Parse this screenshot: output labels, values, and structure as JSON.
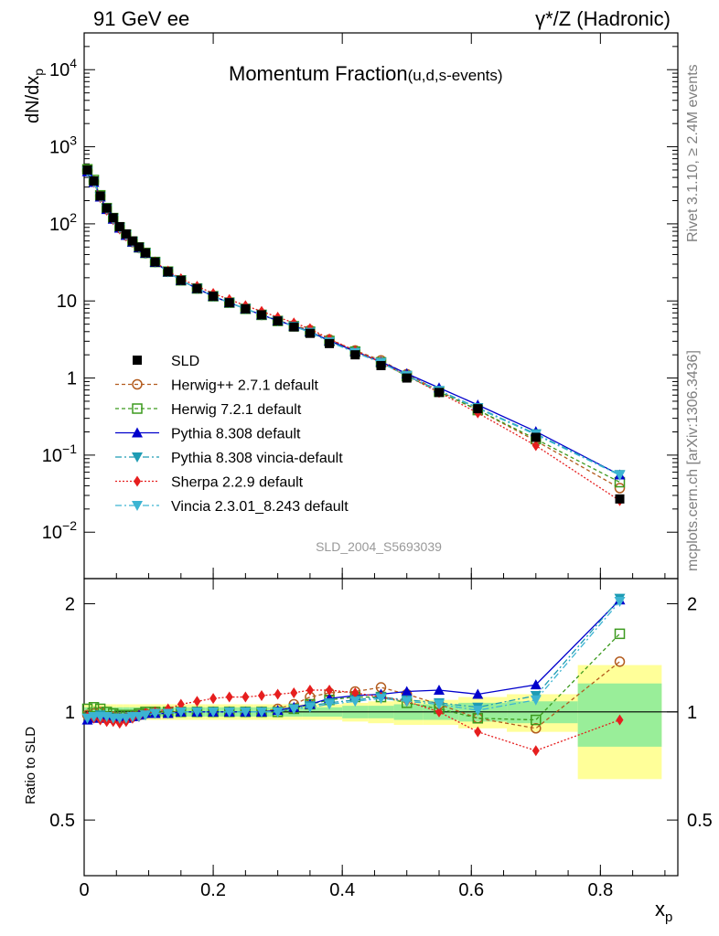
{
  "header": {
    "left_title": "91 GeV ee",
    "right_title": "γ*/Z (Hadronic)",
    "plot_title_main": "Momentum Fraction",
    "plot_title_sub": "(u,d,s-events)",
    "watermark": "SLD_2004_S5693039",
    "side_rivet": "Rivet 3.1.10, ≥ 2.4M events",
    "side_mcplots": "mcplots.cern.ch [arXiv:1306.3436]"
  },
  "axes": {
    "ylabel_top": "dN/dx",
    "ylabel_top_sub": "p",
    "ylabel_bottom": "Ratio to SLD",
    "xlabel": "x",
    "xlabel_sub": "p",
    "top_ticks": [
      {
        "v": 0.01,
        "base": "10",
        "exp": "−2"
      },
      {
        "v": 0.1,
        "base": "10",
        "exp": "−1"
      },
      {
        "v": 1,
        "base": "1",
        "exp": ""
      },
      {
        "v": 10,
        "base": "10",
        "exp": ""
      },
      {
        "v": 100,
        "base": "10",
        "exp": "2"
      },
      {
        "v": 1000,
        "base": "10",
        "exp": "3"
      },
      {
        "v": 10000,
        "base": "10",
        "exp": "4"
      }
    ],
    "ratio_ticks": [
      {
        "v": 0.5,
        "label": "0.5"
      },
      {
        "v": 1,
        "label": "1"
      },
      {
        "v": 2,
        "label": "2"
      }
    ],
    "x_ticks": [
      {
        "v": 0,
        "label": "0"
      },
      {
        "v": 0.2,
        "label": "0.2"
      },
      {
        "v": 0.4,
        "label": "0.4"
      },
      {
        "v": 0.6,
        "label": "0.6"
      },
      {
        "v": 0.8,
        "label": "0.8"
      }
    ]
  },
  "legend": [
    {
      "label": "SLD",
      "color": "#000000",
      "marker": "square-filled",
      "dash": "none"
    },
    {
      "label": "Herwig++ 2.7.1 default",
      "color": "#b35c1e",
      "marker": "circle-open",
      "dash": "4,3"
    },
    {
      "label": "Herwig 7.2.1 default",
      "color": "#3c9a1e",
      "marker": "square-open",
      "dash": "4,3"
    },
    {
      "label": "Pythia 8.308 default",
      "color": "#0000cc",
      "marker": "triangle-up",
      "dash": "none"
    },
    {
      "label": "Pythia 8.308 vincia-default",
      "color": "#1e9cb4",
      "marker": "triangle-down",
      "dash": "7,3,2,3"
    },
    {
      "label": "Sherpa 2.2.9 default",
      "color": "#e61e1e",
      "marker": "diamond",
      "dash": "2,2"
    },
    {
      "label": "Vincia 2.3.01_8.243 default",
      "color": "#3cb4d2",
      "marker": "triangle-down",
      "dash": "7,3,2,3"
    }
  ],
  "chart_data": {
    "type": "line",
    "title": "Momentum Fraction(u,d,s-events)",
    "xlabel": "x_p",
    "ylabel": "dN/dx_p",
    "xlim": [
      0,
      0.92
    ],
    "ylim": [
      0.0025,
      30000
    ],
    "ratio_ylim": [
      0.35,
      2.35
    ],
    "y_scale": "log",
    "ratio_scale": "log",
    "legend_position": "lower-left",
    "x": [
      0.005,
      0.015,
      0.025,
      0.035,
      0.045,
      0.055,
      0.065,
      0.075,
      0.085,
      0.095,
      0.11,
      0.13,
      0.15,
      0.175,
      0.2,
      0.225,
      0.25,
      0.275,
      0.3,
      0.325,
      0.35,
      0.38,
      0.42,
      0.46,
      0.5,
      0.55,
      0.61,
      0.7,
      0.83
    ],
    "data_values": [
      500,
      360,
      230,
      160,
      120,
      92,
      74,
      60,
      50,
      42,
      32,
      24,
      18.5,
      14.5,
      11.5,
      9.5,
      7.9,
      6.6,
      5.5,
      4.6,
      3.8,
      2.8,
      2.0,
      1.45,
      1.0,
      0.65,
      0.4,
      0.17,
      0.027
    ],
    "data_band_inner": [
      0.03,
      0.03,
      0.03,
      0.03,
      0.03,
      0.03,
      0.03,
      0.03,
      0.03,
      0.03,
      0.03,
      0.03,
      0.03,
      0.03,
      0.03,
      0.03,
      0.03,
      0.03,
      0.03,
      0.03,
      0.03,
      0.03,
      0.04,
      0.04,
      0.05,
      0.05,
      0.06,
      0.07,
      0.2
    ],
    "data_band_outer": [
      0.05,
      0.05,
      0.05,
      0.05,
      0.05,
      0.05,
      0.05,
      0.05,
      0.05,
      0.05,
      0.05,
      0.05,
      0.05,
      0.05,
      0.05,
      0.05,
      0.05,
      0.05,
      0.05,
      0.05,
      0.05,
      0.05,
      0.06,
      0.07,
      0.08,
      0.08,
      0.1,
      0.12,
      0.35
    ],
    "series": [
      {
        "name": "Herwig++ 2.7.1 default",
        "ratios": [
          0.98,
          0.99,
          1.0,
          0.97,
          0.97,
          0.96,
          0.96,
          0.97,
          0.98,
          0.99,
          1.0,
          1.0,
          1.0,
          1.0,
          1.0,
          1.0,
          1.0,
          1.0,
          1.02,
          1.05,
          1.1,
          1.13,
          1.14,
          1.17,
          1.12,
          1.05,
          0.96,
          0.9,
          1.38
        ]
      },
      {
        "name": "Herwig 7.2.1 default",
        "ratios": [
          1.02,
          1.03,
          1.02,
          1.0,
          0.99,
          0.98,
          0.98,
          0.98,
          0.99,
          1.0,
          1.0,
          1.0,
          1.0,
          1.0,
          1.0,
          1.0,
          1.0,
          1.0,
          1.0,
          1.02,
          1.05,
          1.08,
          1.1,
          1.1,
          1.06,
          1.02,
          0.96,
          0.95,
          1.65
        ]
      },
      {
        "name": "Pythia 8.308 default",
        "ratios": [
          0.95,
          0.96,
          0.97,
          0.96,
          0.96,
          0.96,
          0.96,
          0.97,
          0.98,
          0.99,
          0.99,
          0.99,
          1.0,
          1.0,
          1.0,
          1.0,
          1.0,
          1.0,
          1.01,
          1.03,
          1.05,
          1.09,
          1.11,
          1.12,
          1.14,
          1.15,
          1.12,
          1.19,
          2.05
        ]
      },
      {
        "name": "Pythia 8.308 vincia-default",
        "ratios": [
          0.96,
          0.97,
          0.98,
          0.97,
          0.96,
          0.96,
          0.96,
          0.97,
          0.97,
          0.98,
          0.99,
          0.99,
          1.0,
          1.0,
          1.0,
          1.0,
          1.0,
          1.0,
          1.0,
          1.02,
          1.04,
          1.06,
          1.08,
          1.1,
          1.08,
          1.06,
          1.03,
          1.11,
          2.07
        ]
      },
      {
        "name": "Sherpa 2.2.9 default",
        "ratios": [
          0.97,
          0.96,
          0.95,
          0.94,
          0.94,
          0.93,
          0.94,
          0.96,
          0.97,
          0.99,
          1.0,
          1.02,
          1.05,
          1.07,
          1.09,
          1.1,
          1.1,
          1.11,
          1.12,
          1.13,
          1.15,
          1.15,
          1.13,
          1.1,
          1.07,
          1.0,
          0.88,
          0.78,
          0.95
        ]
      },
      {
        "name": "Vincia 2.3.01_8.243 default",
        "ratios": [
          0.96,
          0.97,
          0.97,
          0.97,
          0.96,
          0.96,
          0.96,
          0.97,
          0.97,
          0.98,
          0.99,
          0.99,
          1.0,
          1.0,
          1.0,
          1.0,
          1.0,
          1.0,
          1.0,
          1.02,
          1.03,
          1.05,
          1.07,
          1.09,
          1.07,
          1.05,
          1.01,
          1.08,
          2.03
        ]
      }
    ]
  }
}
